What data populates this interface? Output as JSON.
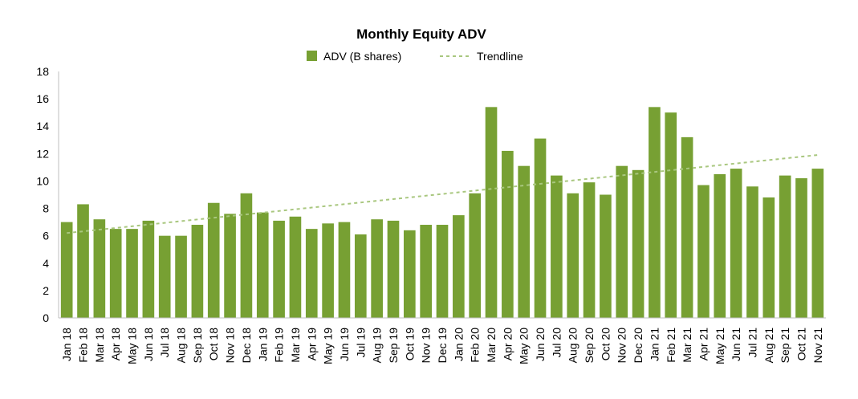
{
  "chart_data": {
    "type": "bar",
    "title": "Monthly Equity ADV",
    "xlabel": "",
    "ylabel": "",
    "ylim": [
      0,
      18
    ],
    "yticks": [
      0,
      2,
      4,
      6,
      8,
      10,
      12,
      14,
      16,
      18
    ],
    "grid": false,
    "legend_position": "top-center",
    "categories": [
      "Jan 18",
      "Feb 18",
      "Mar 18",
      "Apr 18",
      "May 18",
      "Jun 18",
      "Jul 18",
      "Aug 18",
      "Sep 18",
      "Oct 18",
      "Nov 18",
      "Dec 18",
      "Jan 19",
      "Feb 19",
      "Mar 19",
      "Apr 19",
      "May 19",
      "Jun 19",
      "Jul 19",
      "Aug 19",
      "Sep 19",
      "Oct 19",
      "Nov 19",
      "Dec 19",
      "Jan 20",
      "Feb 20",
      "Mar 20",
      "Apr 20",
      "May 20",
      "Jun 20",
      "Jul 20",
      "Aug 20",
      "Sep 20",
      "Oct 20",
      "Nov 20",
      "Dec 20",
      "Jan 21",
      "Feb 21",
      "Mar 21",
      "Apr 21",
      "May 21",
      "Jun 21",
      "Jul 21",
      "Aug 21",
      "Sep 21",
      "Oct 21",
      "Nov 21"
    ],
    "series": [
      {
        "name": "ADV (B shares)",
        "values": [
          7.0,
          8.3,
          7.2,
          6.5,
          6.5,
          7.1,
          6.0,
          6.0,
          6.8,
          8.4,
          7.6,
          9.1,
          7.7,
          7.1,
          7.4,
          6.5,
          6.9,
          7.0,
          6.1,
          7.2,
          7.1,
          6.4,
          6.8,
          6.8,
          7.5,
          9.1,
          15.4,
          12.2,
          11.1,
          13.1,
          10.4,
          9.1,
          9.9,
          9.0,
          11.1,
          10.8,
          15.4,
          15.0,
          13.2,
          9.7,
          10.5,
          10.9,
          9.6,
          8.8,
          10.4,
          10.2,
          10.9
        ],
        "color": "#77A033"
      },
      {
        "name": "Trendline",
        "type": "line",
        "style": "dashed",
        "start": 6.2,
        "end": 11.9,
        "color": "#A9C77F"
      }
    ]
  }
}
